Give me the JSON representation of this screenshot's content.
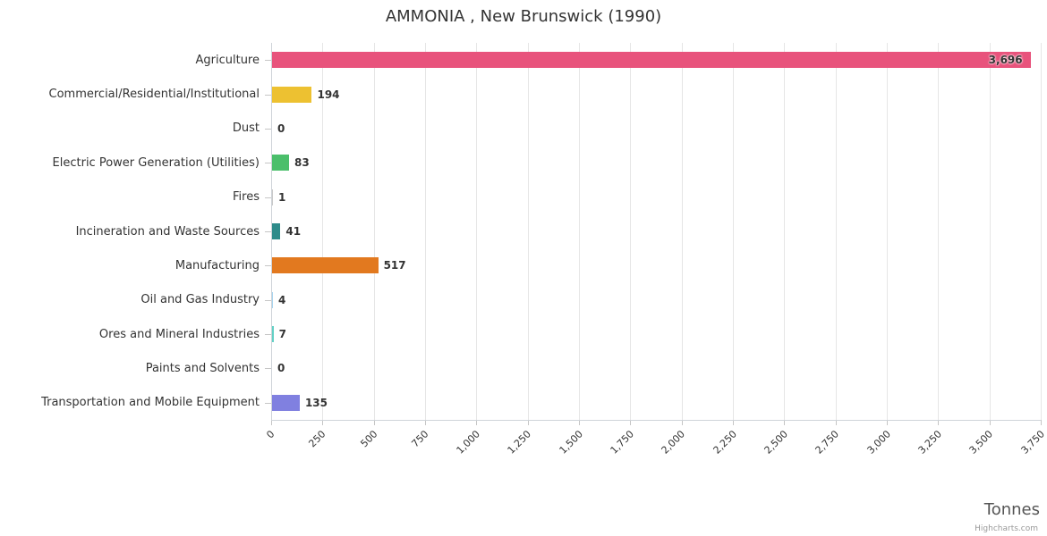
{
  "chart": {
    "title": "AMMONIA , New Brunswick (1990)",
    "xlabel": "Tonnes",
    "credits": "Highcharts.com"
  },
  "chart_data": {
    "type": "bar",
    "orientation": "horizontal",
    "title": "AMMONIA , New Brunswick (1990)",
    "categories": [
      "Agriculture",
      "Commercial/Residential/Institutional",
      "Dust",
      "Electric Power Generation (Utilities)",
      "Fires",
      "Incineration and Waste Sources",
      "Manufacturing",
      "Oil and Gas Industry",
      "Ores and Mineral Industries",
      "Paints and Solvents",
      "Transportation and Mobile Equipment"
    ],
    "values": [
      3696,
      194,
      0,
      83,
      1,
      41,
      517,
      4,
      7,
      0,
      135
    ],
    "value_labels": [
      "3,696",
      "194",
      "0",
      "83",
      "1",
      "41",
      "517",
      "4",
      "7",
      "0",
      "135"
    ],
    "colors": [
      "#e8537c",
      "#edc131",
      "#bbbbbb",
      "#4bbf6b",
      "#c9c9c9",
      "#2e8b8a",
      "#e2791f",
      "#a8d4ef",
      "#63d0c5",
      "#bbbbbb",
      "#8080e0"
    ],
    "xlabel": "Tonnes",
    "xlim": [
      0,
      3750
    ],
    "tick_interval": 250,
    "grid": true,
    "legend": false
  }
}
